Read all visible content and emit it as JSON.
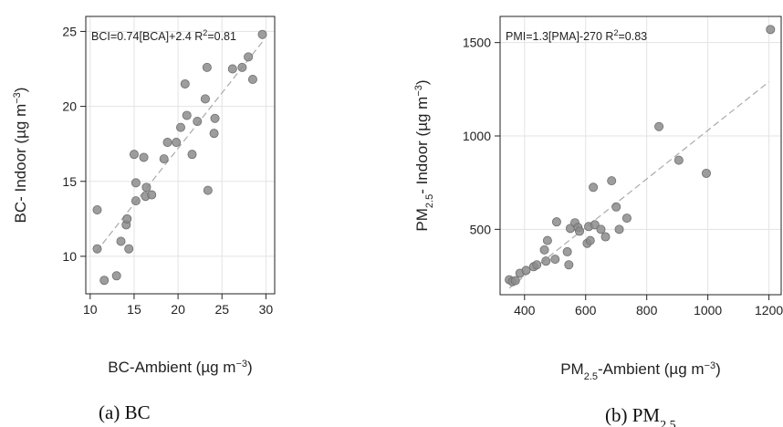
{
  "chart_data": [
    {
      "type": "scatter",
      "panel": "a",
      "caption": {
        "prefix": "(a)  ",
        "text": "BC",
        "sub": ""
      },
      "annotation": {
        "text": "BCI=0.74[BCA]+2.4 R",
        "sup": "2",
        "tail": "=0.81"
      },
      "xlabel": {
        "main": "BC-Ambient (µg m",
        "sup": "−3",
        "tail": ")"
      },
      "ylabel": {
        "main": "BC- Indoor (µg m",
        "sup": "−3",
        "tail": ")"
      },
      "xlim": [
        9.5,
        31
      ],
      "ylim": [
        7.5,
        26
      ],
      "xticks": [
        "10",
        "15",
        "20",
        "25",
        "30"
      ],
      "yticks": [
        "10",
        "15",
        "20",
        "25"
      ],
      "grid": true,
      "fit": {
        "slope": 0.74,
        "intercept": 2.4,
        "x_range": [
          10.7,
          29.6
        ]
      },
      "points": [
        [
          10.8,
          13.1
        ],
        [
          10.8,
          10.5
        ],
        [
          11.6,
          8.4
        ],
        [
          13.0,
          8.7
        ],
        [
          13.5,
          11.0
        ],
        [
          14.1,
          12.1
        ],
        [
          14.2,
          12.5
        ],
        [
          14.4,
          10.5
        ],
        [
          15.0,
          16.8
        ],
        [
          15.2,
          14.9
        ],
        [
          15.2,
          13.7
        ],
        [
          16.1,
          16.6
        ],
        [
          16.3,
          14.0
        ],
        [
          16.4,
          14.6
        ],
        [
          17.0,
          14.1
        ],
        [
          18.4,
          16.5
        ],
        [
          18.8,
          17.6
        ],
        [
          19.8,
          17.6
        ],
        [
          20.3,
          18.6
        ],
        [
          20.8,
          21.5
        ],
        [
          21.0,
          19.4
        ],
        [
          21.6,
          16.8
        ],
        [
          22.2,
          19.0
        ],
        [
          23.1,
          20.5
        ],
        [
          23.3,
          22.6
        ],
        [
          23.4,
          14.4
        ],
        [
          24.1,
          18.2
        ],
        [
          24.2,
          19.2
        ],
        [
          26.2,
          22.5
        ],
        [
          27.3,
          22.6
        ],
        [
          28.0,
          23.3
        ],
        [
          28.5,
          21.8
        ],
        [
          29.6,
          24.8
        ]
      ]
    },
    {
      "type": "scatter",
      "panel": "b",
      "caption": {
        "prefix": "(b) ",
        "text": "PM",
        "sub": "2.5"
      },
      "annotation": {
        "text": "PMI=1.3[PMA]-270 R",
        "sup": "2",
        "tail": "=0.83"
      },
      "xlabel": {
        "main": "PM",
        "sub": "2.5",
        "main2": "-Ambient (µg m",
        "sup": "−3",
        "tail": ")"
      },
      "ylabel": {
        "main": "PM",
        "sub": "2.5",
        "main2": "- Indoor (µg m",
        "sup": "−3",
        "tail": ")"
      },
      "xlim": [
        320,
        1240
      ],
      "ylim": [
        150,
        1640
      ],
      "xticks": [
        "400",
        "600",
        "800",
        "1000",
        "1200"
      ],
      "yticks": [
        "500",
        "1000",
        "1500"
      ],
      "grid": true,
      "fit": {
        "slope": 1.3,
        "intercept": -270,
        "x_range": [
          350,
          1200
        ]
      },
      "points": [
        [
          350,
          230
        ],
        [
          360,
          220
        ],
        [
          370,
          225
        ],
        [
          385,
          265
        ],
        [
          405,
          280
        ],
        [
          430,
          300
        ],
        [
          440,
          310
        ],
        [
          465,
          390
        ],
        [
          470,
          330
        ],
        [
          475,
          440
        ],
        [
          500,
          340
        ],
        [
          505,
          540
        ],
        [
          540,
          380
        ],
        [
          545,
          310
        ],
        [
          550,
          505
        ],
        [
          565,
          535
        ],
        [
          575,
          510
        ],
        [
          580,
          490
        ],
        [
          605,
          425
        ],
        [
          610,
          515
        ],
        [
          615,
          440
        ],
        [
          625,
          725
        ],
        [
          630,
          525
        ],
        [
          650,
          500
        ],
        [
          665,
          460
        ],
        [
          685,
          760
        ],
        [
          700,
          620
        ],
        [
          710,
          500
        ],
        [
          735,
          560
        ],
        [
          840,
          1050
        ],
        [
          905,
          870
        ],
        [
          995,
          800
        ],
        [
          1205,
          1570
        ]
      ]
    }
  ]
}
